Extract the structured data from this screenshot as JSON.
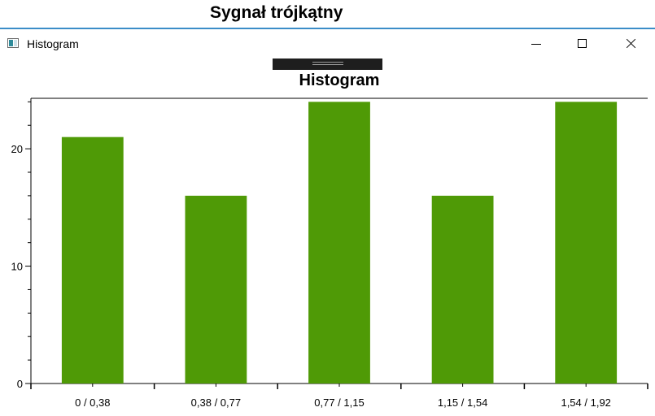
{
  "background": {
    "title": "Sygnał trójkątny"
  },
  "window": {
    "title": "Histogram",
    "controls": [
      "minimize",
      "maximize",
      "close"
    ]
  },
  "colors": {
    "bar": "#4f9a06",
    "accent_line": "#3c8dc8"
  },
  "chart_data": {
    "type": "bar",
    "title": "Histogram",
    "categories": [
      "0 / 0,38",
      "0,38 / 0,77",
      "0,77 / 1,15",
      "1,15 / 1,54",
      "1,54 / 1,92"
    ],
    "values": [
      21,
      16,
      24,
      16,
      24
    ],
    "xlabel": "",
    "ylabel": "",
    "ylim": [
      0,
      24.3
    ],
    "yticks": [
      0,
      10,
      20
    ],
    "grid": false,
    "legend": "none"
  }
}
